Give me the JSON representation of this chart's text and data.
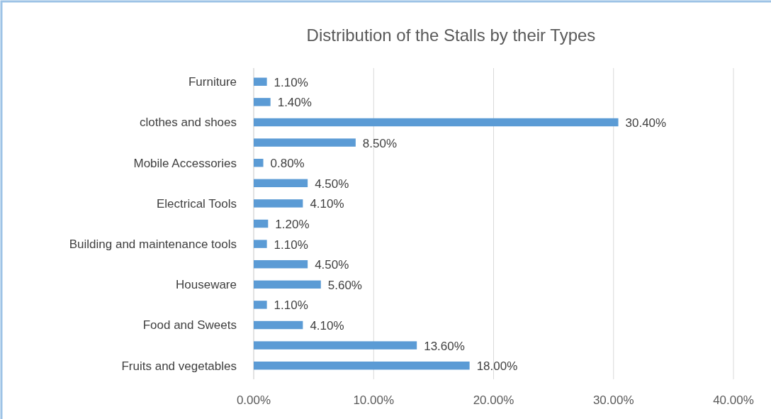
{
  "chart_data": {
    "type": "bar",
    "orientation": "horizontal",
    "title": "Distribution of the Stalls by their Types",
    "categories": [
      "Furniture",
      null,
      "clothes and shoes",
      null,
      "Mobile Accessories",
      null,
      "Electrical Tools",
      null,
      "Building and maintenance tools",
      null,
      "Houseware",
      null,
      "Food and Sweets",
      null,
      "Fruits and vegetables"
    ],
    "values": [
      1.1,
      1.4,
      30.4,
      8.5,
      0.8,
      4.5,
      4.1,
      1.2,
      1.1,
      4.5,
      5.6,
      1.1,
      4.1,
      13.6,
      18.0
    ],
    "value_labels": [
      "1.10%",
      "1.40%",
      "30.40%",
      "8.50%",
      "0.80%",
      "4.50%",
      "4.10%",
      "1.20%",
      "1.10%",
      "4.50%",
      "5.60%",
      "1.10%",
      "4.10%",
      "13.60%",
      "18.00%"
    ],
    "color": "#5b9bd5",
    "xlim": [
      0,
      40
    ],
    "xticks": [
      {
        "value": 0,
        "label": "0.00%"
      },
      {
        "value": 10,
        "label": "10.00%"
      },
      {
        "value": 20,
        "label": "20.00%"
      },
      {
        "value": 30,
        "label": "30.00%"
      },
      {
        "value": 40,
        "label": "40.00%"
      }
    ],
    "grid": "x"
  }
}
